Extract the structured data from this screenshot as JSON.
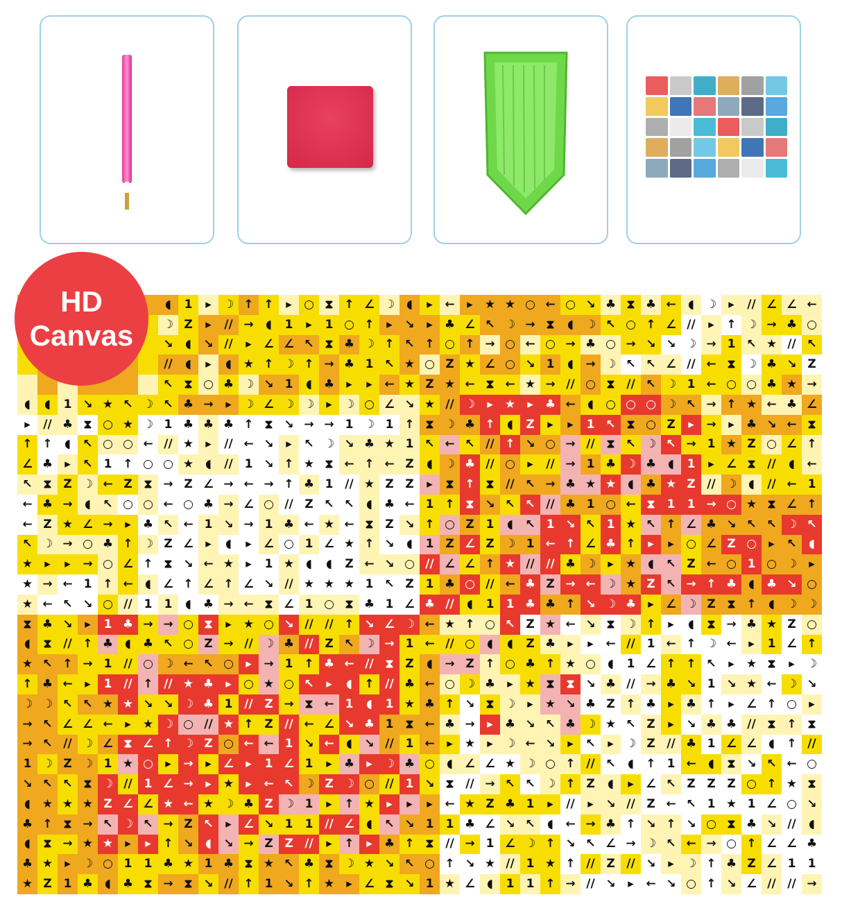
{
  "badge": {
    "line1": "HD",
    "line2": "Canvas",
    "color": "#ec3f43"
  },
  "products": [
    {
      "name": "diamond-pen",
      "color": "#e2409a"
    },
    {
      "name": "glue-clay",
      "color": "#d42848"
    },
    {
      "name": "drill-tray",
      "color": "#7ee05a"
    },
    {
      "name": "diamond-bags"
    }
  ],
  "palette": {
    "yellow": "#f7de00",
    "orange": "#f0a81e",
    "red": "#e8392e",
    "pink": "#f4b3b3",
    "light": "#fff4b4",
    "white": "#ffffff"
  }
}
